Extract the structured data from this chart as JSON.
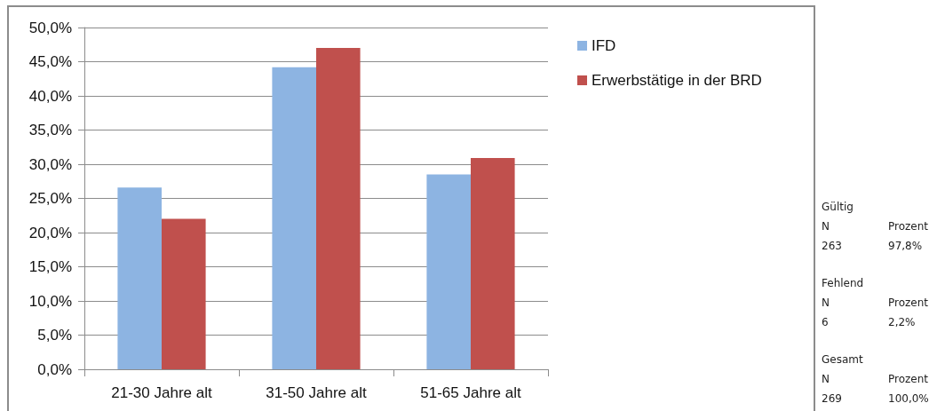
{
  "chart_data": {
    "type": "bar",
    "categories": [
      "21-30 Jahre alt",
      "31-50 Jahre alt",
      "51-65 Jahre alt"
    ],
    "series": [
      {
        "name": "IFD",
        "color": "#8db4e2",
        "values": [
          26.6,
          44.2,
          28.5
        ]
      },
      {
        "name": "Erwerbstätige in der BRD",
        "color": "#c0504d",
        "values": [
          22.0,
          47.0,
          30.9
        ]
      }
    ],
    "ylim": [
      0,
      50
    ],
    "yticks": [
      {
        "value": 0,
        "label": "0,0%"
      },
      {
        "value": 5,
        "label": "5,0%"
      },
      {
        "value": 10,
        "label": "10,0%"
      },
      {
        "value": 15,
        "label": "15,0%"
      },
      {
        "value": 20,
        "label": "20,0%"
      },
      {
        "value": 25,
        "label": "25,0%"
      },
      {
        "value": 30,
        "label": "30,0%"
      },
      {
        "value": 35,
        "label": "35,0%"
      },
      {
        "value": 40,
        "label": "40,0%"
      },
      {
        "value": 45,
        "label": "45,0%"
      },
      {
        "value": 50,
        "label": "50,0%"
      }
    ],
    "grid": "y",
    "legend": "top right",
    "annotations": [
      "Gültig",
      "N",
      "Prozent",
      "263",
      "97,8%",
      "Fehlend",
      "N",
      "Prozent",
      "6",
      "2,2%",
      "Gesamt",
      "N",
      "Prozent",
      "269",
      "100,0%"
    ]
  }
}
